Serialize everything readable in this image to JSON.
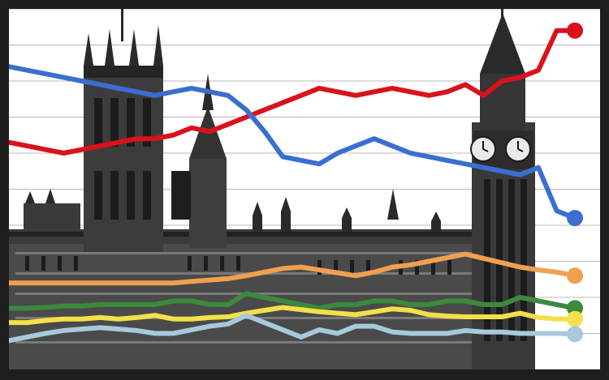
{
  "chart_data": {
    "type": "line",
    "title": "",
    "xlabel": "",
    "ylabel": "",
    "grid": true,
    "legend": "none",
    "background_image": "palace-of-westminster-illustration",
    "ylim": [
      0,
      50
    ],
    "gridlines": [
      0,
      5,
      10,
      15,
      20,
      25,
      30,
      35,
      40,
      45,
      50
    ],
    "x": [
      1,
      2,
      3,
      4,
      5,
      6,
      7,
      8,
      9,
      10,
      11,
      12,
      13,
      14,
      15,
      16,
      17,
      18,
      19,
      20,
      21,
      22,
      23,
      24,
      25,
      26,
      27,
      28,
      29,
      30,
      31,
      32
    ],
    "series": [
      {
        "color": "#d9121c",
        "marker": "end-dot",
        "values": [
          31.5,
          31,
          30.5,
          30,
          30.5,
          31,
          31.5,
          32,
          32,
          32.5,
          33.5,
          33,
          34,
          35,
          36,
          37,
          38,
          39,
          38.5,
          38,
          38.5,
          39,
          38.5,
          38,
          38.5,
          39.5,
          38,
          40,
          40.5,
          41.5,
          47,
          47
        ]
      },
      {
        "color": "#3a6fd0",
        "marker": "end-dot",
        "values": [
          42,
          41.5,
          41,
          40.5,
          40,
          39.5,
          39,
          38.5,
          38,
          38.5,
          39,
          38.5,
          38,
          36,
          33,
          29.5,
          29,
          28.5,
          30,
          31,
          32,
          31,
          30,
          29.5,
          29,
          28.5,
          28,
          27.5,
          27,
          28,
          22,
          21
        ]
      },
      {
        "color": "#f0a050",
        "marker": "end-dot",
        "values": [
          12,
          12,
          12,
          12,
          12,
          12,
          12,
          12,
          12,
          12,
          12.2,
          12.4,
          12.6,
          13,
          13.5,
          14,
          14.2,
          13.8,
          13.4,
          13.0,
          13.5,
          14.2,
          14.5,
          15,
          15.5,
          16,
          15.4,
          14.8,
          14.2,
          13.8,
          13.5,
          13
        ]
      },
      {
        "color": "#3c8a3c",
        "marker": "end-dot",
        "values": [
          8.5,
          8.5,
          8.6,
          8.8,
          8.8,
          9,
          9,
          9,
          9,
          9.5,
          9.5,
          9,
          9,
          10.5,
          10,
          9.5,
          9,
          8.5,
          9,
          9,
          9.5,
          9.5,
          9,
          9,
          9.5,
          9.5,
          9,
          9,
          10,
          9.5,
          9,
          8.5
        ]
      },
      {
        "color": "#f3e04a",
        "marker": "end-dot",
        "values": [
          6.5,
          6.5,
          6.8,
          7,
          7,
          7.2,
          7,
          7.2,
          7.5,
          7,
          7,
          7.2,
          7.3,
          7.8,
          8.2,
          8.6,
          8.3,
          8,
          7.8,
          7.6,
          8,
          8.4,
          8.2,
          7.6,
          7.4,
          7.3,
          7.3,
          7.3,
          7.8,
          7.2,
          7,
          7
        ]
      },
      {
        "color": "#a6cadb",
        "marker": "end-dot",
        "values": [
          4,
          4.5,
          5,
          5.4,
          5.6,
          5.8,
          5.6,
          5.4,
          5,
          5,
          5.5,
          6,
          6.3,
          7.5,
          6.5,
          5.5,
          4.5,
          5.5,
          5,
          6,
          6,
          5.2,
          5,
          5,
          5,
          5.4,
          5.2,
          5.2,
          5,
          5,
          5,
          4.9
        ]
      }
    ]
  }
}
